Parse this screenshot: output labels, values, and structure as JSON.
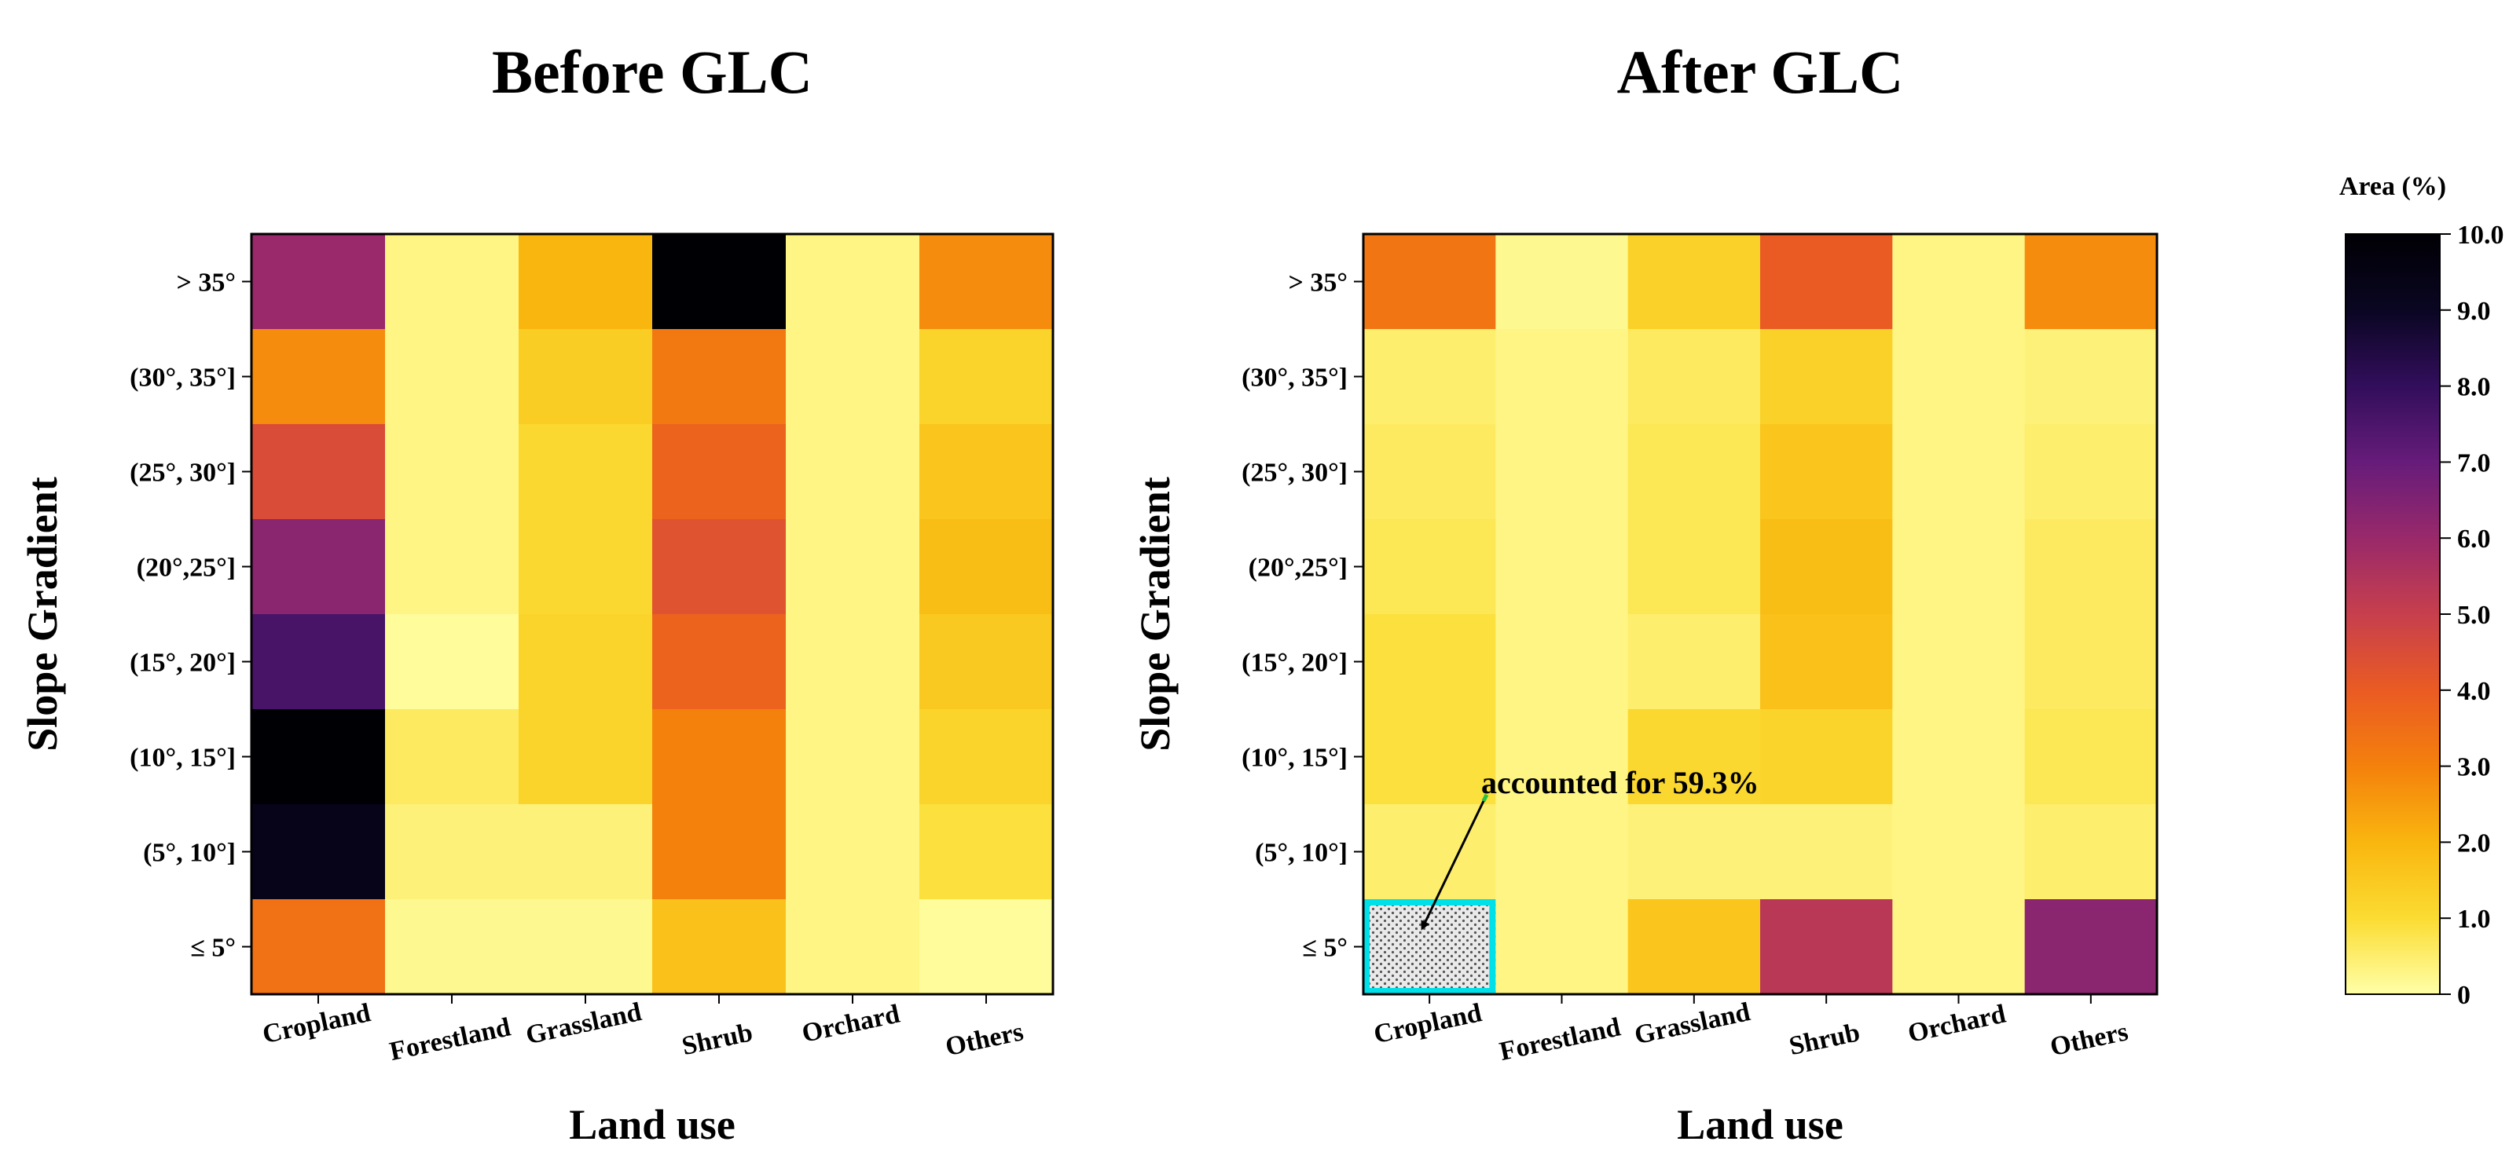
{
  "chart_data": [
    {
      "type": "heatmap",
      "title": "Before GLC",
      "xlabel": "Land use",
      "ylabel": "Slope Gradient",
      "x_categories": [
        "Cropland",
        "Forestland",
        "Grassland",
        "Shrub",
        "Orchard",
        "Others"
      ],
      "y_categories": [
        "> 35°",
        "(30°, 35°]",
        "(25°, 30°]",
        "(20°,25°]",
        "(15°, 20°]",
        "(10°, 15°]",
        "(5°, 10°]",
        "≤ 5°"
      ],
      "values": [
        [
          6.0,
          0.3,
          2.0,
          10.0,
          0.3,
          2.8
        ],
        [
          2.8,
          0.3,
          1.4,
          3.2,
          0.3,
          1.2
        ],
        [
          4.5,
          0.3,
          1.1,
          3.8,
          0.3,
          1.6
        ],
        [
          6.3,
          0.3,
          1.1,
          4.3,
          0.3,
          1.8
        ],
        [
          7.6,
          0.1,
          1.2,
          3.8,
          0.3,
          1.5
        ],
        [
          10.0,
          0.6,
          1.2,
          3.0,
          0.3,
          1.2
        ],
        [
          9.3,
          0.4,
          0.4,
          3.0,
          0.3,
          0.9
        ],
        [
          3.4,
          0.2,
          0.2,
          1.7,
          0.3,
          0.1
        ]
      ]
    },
    {
      "type": "heatmap",
      "title": "After GLC",
      "xlabel": "Land use",
      "ylabel": "Slope Gradient",
      "x_categories": [
        "Cropland",
        "Forestland",
        "Grassland",
        "Shrub",
        "Orchard",
        "Others"
      ],
      "y_categories": [
        "> 35°",
        "(30°, 35°]",
        "(25°, 30°]",
        "(20°,25°]",
        "(15°, 20°]",
        "(10°, 15°]",
        "(5°, 10°]",
        "≤ 5°"
      ],
      "values": [
        [
          3.3,
          0.2,
          1.3,
          4.0,
          0.3,
          2.8
        ],
        [
          0.5,
          0.3,
          0.6,
          1.3,
          0.3,
          0.4
        ],
        [
          0.6,
          0.3,
          0.7,
          1.6,
          0.3,
          0.5
        ],
        [
          0.7,
          0.3,
          0.7,
          1.8,
          0.3,
          0.6
        ],
        [
          0.9,
          0.3,
          0.5,
          1.7,
          0.3,
          0.6
        ],
        [
          0.9,
          0.3,
          1.1,
          1.2,
          0.3,
          0.7
        ],
        [
          0.5,
          0.3,
          0.4,
          0.4,
          0.3,
          0.5
        ],
        [
          null,
          0.3,
          1.6,
          5.3,
          0.3,
          6.3
        ]
      ],
      "highlighted_cell": {
        "x": "Cropland",
        "y": "≤ 5°",
        "pattern": "hatched"
      },
      "annotation": "accounted for 59.3%"
    }
  ],
  "colorbar": {
    "title": "Area (%)",
    "range": [
      0,
      10
    ],
    "ticks": [
      "10.0",
      "9.0",
      "8.0",
      "7.0",
      "6.0",
      "5.0",
      "4.0",
      "3.0",
      "2.0",
      "1.0",
      "0"
    ],
    "tick_values": [
      10,
      9,
      8,
      7,
      6,
      5,
      4,
      3,
      2,
      1,
      0
    ],
    "colormap": "inferno_r",
    "colors": [
      "#ffffa8",
      "#fbdc32",
      "#f9b60f",
      "#f4810c",
      "#ea5b23",
      "#c73f4d",
      "#99296a",
      "#661c7a",
      "#320e5c",
      "#0a0622",
      "#000004"
    ]
  },
  "colors": {
    "highlight_border": "#00e0e8",
    "arrow": "#000000",
    "arrow_tail": "#22c244"
  }
}
